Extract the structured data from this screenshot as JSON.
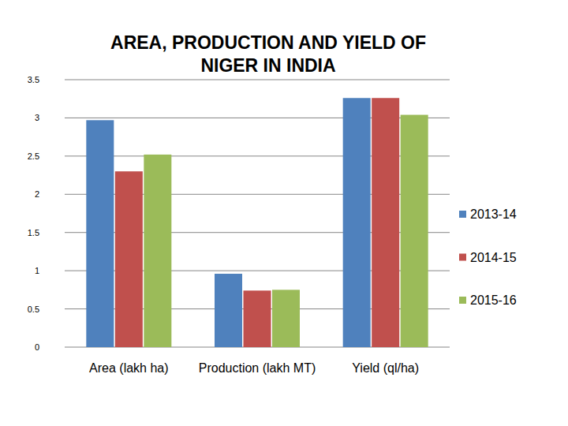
{
  "chart_data": {
    "type": "bar",
    "title": "AREA, PRODUCTION AND YIELD OF NIGER IN INDIA",
    "categories": [
      "Area (lakh ha)",
      "Production (lakh MT)",
      "Yield (ql/ha)"
    ],
    "series": [
      {
        "name": "2013-14",
        "color": "#4f81bd",
        "values": [
          2.97,
          0.96,
          3.26
        ]
      },
      {
        "name": "2014-15",
        "color": "#c0504d",
        "values": [
          2.3,
          0.74,
          3.26
        ]
      },
      {
        "name": "2015-16",
        "color": "#9bbb59",
        "values": [
          2.52,
          0.75,
          3.04
        ]
      }
    ],
    "ylim": [
      0,
      3.5
    ],
    "yticks": [
      0,
      0.5,
      1,
      1.5,
      2,
      2.5,
      3,
      3.5
    ],
    "grid": true,
    "legend": "right"
  }
}
